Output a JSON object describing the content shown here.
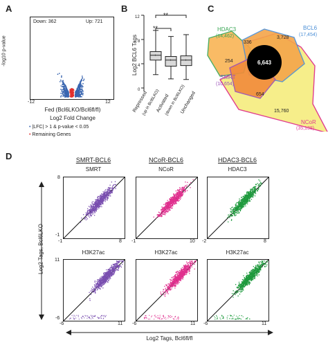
{
  "panels": {
    "a": {
      "letter": "A",
      "down": "Down: 362",
      "up": "Up: 721",
      "xmin": "-12",
      "xmax": "12",
      "ylabel": "-log10 p-value",
      "xlabel1": "Fed (Bcl6LKO/Bcl6fl/fl)",
      "xlabel2": "Log2 Fold Change",
      "legend1": "|LFC| > 1 & p-value < 0.05",
      "legend2": "Remaining Genes",
      "color_sig": "#3a66b0",
      "color_rest": "#e0302e"
    },
    "b": {
      "letter": "B",
      "ylabel": "Log2 BCL6 Tags",
      "sig": "**",
      "yticks": [
        "12",
        "8",
        "4",
        "0"
      ],
      "categories": [
        "Repressed",
        "Activated",
        "Unchanged"
      ],
      "sub1": "(up in Bcl6LKO)",
      "sub2": "(down in Bcl6LKO)"
    },
    "c": {
      "letter": "C",
      "hdac3": "HDAC3",
      "hdac3_n": "(14,462)",
      "bcl6": "BCL6",
      "bcl6_n": "(17,454)",
      "smrt": "SMRT",
      "smrt_n": "(10,654)",
      "ncor": "NCoR",
      "ncor_n": "(35,138)",
      "v336": "336",
      "v3728": "3,728",
      "v254": "254",
      "v6643": "6,643",
      "v654": "654",
      "v15760": "15,760",
      "color_hdac3": "#3aa655",
      "color_bcl6": "#4b8fd6",
      "color_smrt": "#9a4fb8",
      "color_ncor": "#e03d8f"
    },
    "d": {
      "letter": "D",
      "col1": "SMRT-BCL6",
      "col2": "NCoR-BCL6",
      "col3": "HDAC3-BCL6",
      "row1": [
        "SMRT",
        "NCoR",
        "HDAC3"
      ],
      "row2": [
        "H3K27ac",
        "H3K27ac",
        "H3K27ac"
      ],
      "r1_lo": "-1",
      "r1_hi": "8",
      "ncor_hi": "10",
      "hdac3_lo": "-2",
      "hdac3_hi": "8",
      "r2_lo": "-6",
      "r2_hi": "11",
      "ylabel": "Log2 Tags, Bcl6LKO",
      "xlabel": "Log2 Tags, Bcl6fl/fl",
      "color_smrt": "#7a4fb0",
      "color_ncor": "#e0318f",
      "color_hdac3": "#1f9a3e"
    }
  }
}
